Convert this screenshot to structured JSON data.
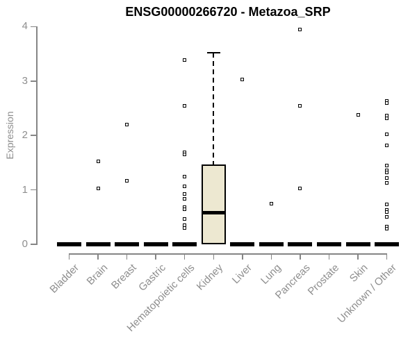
{
  "title": "ENSG00000266720 - Metazoa_SRP",
  "chart_data": {
    "type": "boxplot",
    "title": "ENSG00000266720 - Metazoa_SRP",
    "xlabel": "",
    "ylabel": "Expression",
    "ylim": [
      0,
      4.05
    ],
    "y_ticks": [
      0,
      1,
      2,
      3,
      4
    ],
    "grid": false,
    "legend": "none",
    "categories": [
      "Bladder",
      "Brain",
      "Breast",
      "Gastric",
      "Hematopoietic cells",
      "Kidney",
      "Liver",
      "Lung",
      "Pancreas",
      "Prostate",
      "Skin",
      "Unknown / Other"
    ],
    "boxes": [
      {
        "category": "Bladder",
        "whisker_low": 0,
        "q1": 0,
        "median": 0,
        "q3": 0,
        "whisker_high": 0,
        "outliers": []
      },
      {
        "category": "Brain",
        "whisker_low": 0,
        "q1": 0,
        "median": 0,
        "q3": 0,
        "whisker_high": 0,
        "outliers": [
          1.52,
          1.03
        ]
      },
      {
        "category": "Breast",
        "whisker_low": 0,
        "q1": 0,
        "median": 0,
        "q3": 0,
        "whisker_high": 0,
        "outliers": [
          2.2,
          1.17
        ]
      },
      {
        "category": "Gastric",
        "whisker_low": 0,
        "q1": 0,
        "median": 0,
        "q3": 0,
        "whisker_high": 0,
        "outliers": []
      },
      {
        "category": "Hematopoietic cells",
        "whisker_low": 0,
        "q1": 0,
        "median": 0,
        "q3": 0,
        "whisker_high": 0,
        "outliers": [
          3.39,
          2.54,
          1.69,
          1.65,
          1.24,
          1.07,
          0.92,
          0.83,
          0.68,
          0.64,
          0.47,
          0.35,
          0.3
        ]
      },
      {
        "category": "Kidney",
        "whisker_low": 0,
        "q1": 0,
        "median": 0.58,
        "q3": 1.47,
        "whisker_high": 3.52,
        "outliers": []
      },
      {
        "category": "Liver",
        "whisker_low": 0,
        "q1": 0,
        "median": 0,
        "q3": 0,
        "whisker_high": 0,
        "outliers": [
          3.03
        ]
      },
      {
        "category": "Lung",
        "whisker_low": 0,
        "q1": 0,
        "median": 0,
        "q3": 0,
        "whisker_high": 0,
        "outliers": [
          0.75
        ]
      },
      {
        "category": "Pancreas",
        "whisker_low": 0,
        "q1": 0,
        "median": 0,
        "q3": 0,
        "whisker_high": 0,
        "outliers": [
          3.95,
          2.54,
          1.03
        ]
      },
      {
        "category": "Prostate",
        "whisker_low": 0,
        "q1": 0,
        "median": 0,
        "q3": 0,
        "whisker_high": 0,
        "outliers": []
      },
      {
        "category": "Skin",
        "whisker_low": 0,
        "q1": 0,
        "median": 0,
        "q3": 0,
        "whisker_high": 0,
        "outliers": [
          2.38
        ]
      },
      {
        "category": "Unknown / Other",
        "whisker_low": 0,
        "q1": 0,
        "median": 0,
        "q3": 0,
        "whisker_high": 0,
        "outliers": [
          2.64,
          2.6,
          2.36,
          2.32,
          2.02,
          1.82,
          1.45,
          1.36,
          1.32,
          1.22,
          1.13,
          0.73,
          0.63,
          0.59,
          0.5,
          0.33,
          0.29
        ]
      }
    ],
    "colors": {
      "box_fill": "#EDE8D1",
      "box_border": "#000000",
      "median": "#000000",
      "outlier_border": "#000000",
      "axis": "#858585",
      "tick_label": "#8E8E8E",
      "title": "#000000",
      "background": "#FFFFFF"
    }
  }
}
